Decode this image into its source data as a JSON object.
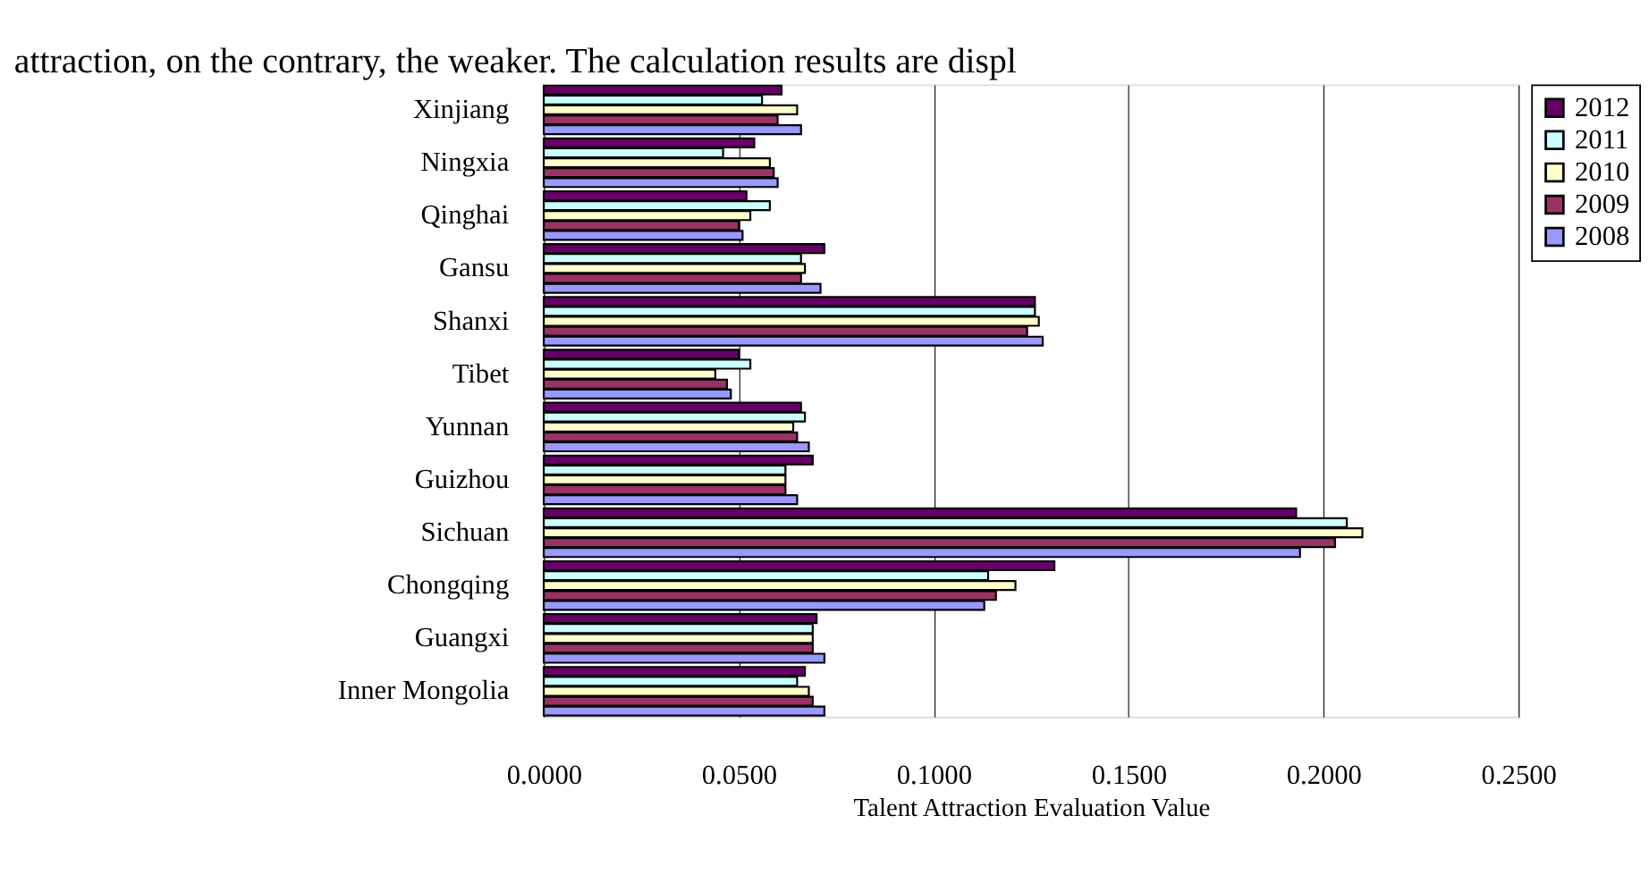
{
  "chart_data": {
    "type": "bar",
    "orientation": "horizontal",
    "xlabel": "Talent Attraction Evaluation Value",
    "annotations": [
      "attraction, on the contrary, the weaker. The calculation results are displ"
    ],
    "categories": [
      "Xinjiang",
      "Ningxia",
      "Qinghai",
      "Gansu",
      "Shanxi",
      "Tibet",
      "Yunnan",
      "Guizhou",
      "Sichuan",
      "Chongqing",
      "Guangxi",
      "Inner Mongolia"
    ],
    "series": [
      {
        "name": "2012",
        "color": "#660066",
        "values": [
          0.061,
          0.054,
          0.052,
          0.072,
          0.126,
          0.05,
          0.066,
          0.069,
          0.193,
          0.131,
          0.07,
          0.067
        ]
      },
      {
        "name": "2011",
        "color": "#ccffff",
        "values": [
          0.056,
          0.046,
          0.058,
          0.066,
          0.126,
          0.053,
          0.067,
          0.062,
          0.206,
          0.114,
          0.069,
          0.065
        ]
      },
      {
        "name": "2010",
        "color": "#ffffcc",
        "values": [
          0.065,
          0.058,
          0.053,
          0.067,
          0.127,
          0.044,
          0.064,
          0.062,
          0.21,
          0.121,
          0.069,
          0.068
        ]
      },
      {
        "name": "2009",
        "color": "#993366",
        "values": [
          0.06,
          0.059,
          0.05,
          0.066,
          0.124,
          0.047,
          0.065,
          0.062,
          0.203,
          0.116,
          0.069,
          0.069
        ]
      },
      {
        "name": "2008",
        "color": "#9999ff",
        "values": [
          0.066,
          0.06,
          0.051,
          0.071,
          0.128,
          0.048,
          0.068,
          0.065,
          0.194,
          0.113,
          0.072,
          0.072
        ]
      }
    ],
    "xlim": [
      0,
      0.25
    ],
    "xticks": [
      {
        "value": 0,
        "label": "0.0000"
      },
      {
        "value": 0.05,
        "label": "0.0500"
      },
      {
        "value": 0.1,
        "label": "0.1000"
      },
      {
        "value": 0.15,
        "label": "0.1500"
      },
      {
        "value": 0.2,
        "label": "0.2000"
      },
      {
        "value": 0.25,
        "label": "0.2500"
      }
    ],
    "grid": "x",
    "legend": "right"
  }
}
